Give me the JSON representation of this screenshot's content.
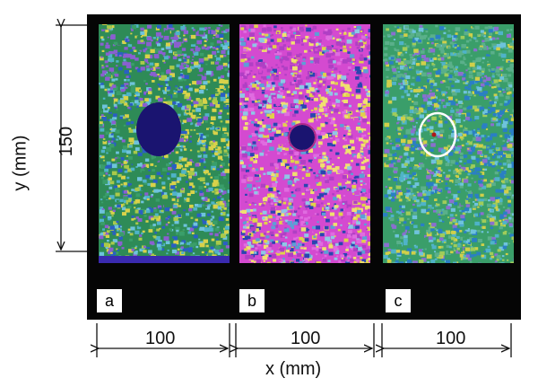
{
  "figure": {
    "axes": {
      "x_title": "x (mm)",
      "y_title": "y (mm)",
      "y_dimension": "150",
      "x_dimensions": [
        "100",
        "100",
        "100"
      ]
    },
    "panels": [
      {
        "label": "a",
        "palette": [
          "#2e8b57",
          "#3a9e6a",
          "#4fb3c8",
          "#6ec3dc",
          "#a9c94a",
          "#d8d24a",
          "#2a5fc4",
          "#8a5fd0"
        ],
        "feature": "large dark blue hole"
      },
      {
        "label": "b",
        "palette": [
          "#d44ad0",
          "#e06ce0",
          "#5d9fd6",
          "#8fc7e6",
          "#e0d24a",
          "#f0e070",
          "#2a45b0",
          "#b03fc4"
        ],
        "feature": "small dark hole"
      },
      {
        "label": "c",
        "palette": [
          "#3a9e6a",
          "#4fb3c8",
          "#6ec3dc",
          "#a0cc5a",
          "#d0cf4a",
          "#2a7fc4",
          "#8a6fd0",
          "#5ab08a"
        ],
        "feature": "circled marker"
      }
    ],
    "colors": {
      "frame": "#050505",
      "hole": "#1a1470",
      "marker_ring": "#ffffff"
    }
  }
}
